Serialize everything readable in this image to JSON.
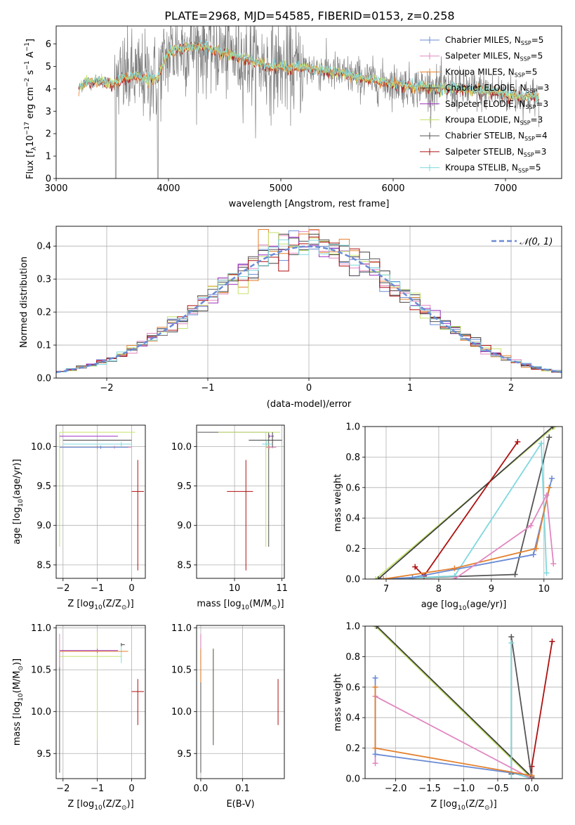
{
  "title": "PLATE=2968, MJD=54585, FIBERID=0153, z=0.258",
  "series_colors": {
    "Chabrier MILES": "#6a8bd5",
    "Salpeter MILES": "#e187c0",
    "Kroupa MILES": "#e3812e",
    "Chabrier ELODIE": "#404040",
    "Salpeter ELODIE": "#9b2fbf",
    "Kroupa ELODIE": "#c4e36c",
    "Chabrier STELIB": "#555555",
    "Salpeter STELIB": "#b01010",
    "Kroupa STELIB": "#7fd8de"
  },
  "chart_data": [
    {
      "id": "spectrum",
      "type": "line",
      "xlabel": "wavelength [Angstrom, rest frame]",
      "ylabel_parts": [
        "Flux [f",
        "λ",
        "10",
        "−17",
        " erg cm",
        "−2",
        " s",
        "−1",
        " A",
        "−1",
        "]"
      ],
      "xlim": [
        3000,
        7500
      ],
      "ylim": [
        0,
        6.8
      ],
      "xticks": [
        3000,
        4000,
        5000,
        6000,
        7000
      ],
      "yticks": [
        0,
        1,
        2,
        3,
        4,
        5,
        6
      ],
      "grid": false,
      "legend_position": "top-right",
      "legend": [
        {
          "base": "Chabrier MILES, N",
          "sub": "SSP",
          "tail": "=5"
        },
        {
          "base": "Salpeter MILES, N",
          "sub": "SSP",
          "tail": "=5"
        },
        {
          "base": "Kroupa MILES, N",
          "sub": "SSP",
          "tail": "=5"
        },
        {
          "base": "Chabrier ELODIE, N",
          "sub": "SSP",
          "tail": "=3"
        },
        {
          "base": "Salpeter ELODIE, N",
          "sub": "SSP",
          "tail": "=3"
        },
        {
          "base": "Kroupa ELODIE, N",
          "sub": "SSP",
          "tail": "=3"
        },
        {
          "base": "Chabrier STELIB, N",
          "sub": "SSP",
          "tail": "=4"
        },
        {
          "base": "Salpeter STELIB, N",
          "sub": "SSP",
          "tail": "=3"
        },
        {
          "base": "Kroupa STELIB, N",
          "sub": "SSP",
          "tail": "=5"
        }
      ],
      "data_range": [
        3200,
        7300
      ],
      "continuum": [
        [
          3200,
          4.0
        ],
        [
          3260,
          4.3
        ],
        [
          3400,
          4.35
        ],
        [
          3500,
          4.2
        ],
        [
          3600,
          4.5
        ],
        [
          3700,
          4.6
        ],
        [
          3800,
          4.5
        ],
        [
          3900,
          4.4
        ],
        [
          3960,
          5.2
        ],
        [
          4000,
          5.6
        ],
        [
          4100,
          5.8
        ],
        [
          4300,
          5.9
        ],
        [
          4500,
          5.6
        ],
        [
          4700,
          5.3
        ],
        [
          4900,
          5.0
        ],
        [
          5100,
          4.9
        ],
        [
          5300,
          4.9
        ],
        [
          5600,
          4.6
        ],
        [
          5900,
          4.3
        ],
        [
          6200,
          4.1
        ],
        [
          6500,
          4.0
        ],
        [
          6800,
          3.9
        ],
        [
          7100,
          3.7
        ],
        [
          7300,
          3.6
        ]
      ]
    },
    {
      "id": "residuals",
      "type": "step",
      "xlabel": "(data-model)/error",
      "ylabel": "Normed distribution",
      "xlim": [
        -2.5,
        2.5
      ],
      "ylim": [
        0,
        0.46
      ],
      "xticks": [
        -2,
        -1,
        0,
        1,
        2
      ],
      "ytick_labels": [
        "0.0",
        "0.1",
        "0.2",
        "0.3",
        "0.4"
      ],
      "yticks": [
        0,
        0.1,
        0.2,
        0.3,
        0.4
      ],
      "grid": true,
      "bin_width": 0.1,
      "gaussian": {
        "label": "𝒩(0, 1)",
        "mean": 0,
        "sigma": 1,
        "color": "#6a8bd5"
      },
      "legend_position": "top-right"
    },
    {
      "id": "age_vs_Z",
      "type": "errorbar",
      "xlabel_parts": [
        "Z [log",
        "10",
        "(Z/Z",
        "⊙",
        ")]"
      ],
      "ylabel_parts": [
        "age  [log",
        "10",
        "(age/yr)]"
      ],
      "xlim": [
        -2.2,
        0.4
      ],
      "ylim": [
        8.33,
        10.27
      ],
      "xticks": [
        -2,
        -1,
        0
      ],
      "yticks": [
        8.5,
        9.0,
        9.5,
        10.0
      ],
      "ytick_labels": [
        "8.5",
        "9.0",
        "9.5",
        "10.0"
      ],
      "grid": true,
      "points": [
        {
          "series": "Salpeter STELIB",
          "x": 0.18,
          "y": 9.43,
          "xerr": [
            0.18,
            0.18
          ],
          "yerr": [
            1.0,
            0.4
          ]
        },
        {
          "series": "Kroupa ELODIE",
          "x": -0.5,
          "y": 10.18,
          "xerr": [
            1.6,
            0.6
          ],
          "yerr": [
            0.0,
            0.0
          ]
        },
        {
          "series": "Kroupa ELODIE",
          "x": -2.1,
          "y": 10.18,
          "xerr": [
            0,
            0
          ],
          "yerr": [
            1.45,
            0
          ]
        },
        {
          "series": "Salpeter ELODIE",
          "x": -1.0,
          "y": 10.13,
          "xerr": [
            1.1,
            0.6
          ],
          "yerr": [
            0,
            0
          ]
        },
        {
          "series": "Chabrier ELODIE",
          "x": -0.3,
          "y": 10.08,
          "xerr": [
            1.7,
            0.3
          ],
          "yerr": [
            0,
            0
          ]
        },
        {
          "series": "Kroupa STELIB",
          "x": -0.3,
          "y": 10.03,
          "xerr": [
            1.7,
            0.3
          ],
          "yerr": [
            0.03,
            0.03
          ]
        },
        {
          "series": "Kroupa MILES",
          "x": -1.0,
          "y": 9.99,
          "xerr": [
            1.1,
            0.9
          ],
          "yerr": [
            0.02,
            0.02
          ]
        },
        {
          "series": "Salpeter MILES",
          "x": -0.5,
          "y": 9.99,
          "xerr": [
            1.5,
            0.5
          ],
          "yerr": [
            0.02,
            0.02
          ]
        },
        {
          "series": "Chabrier MILES",
          "x": -0.9,
          "y": 9.99,
          "xerr": [
            1.2,
            0.8
          ],
          "yerr": [
            0.02,
            0.02
          ]
        }
      ]
    },
    {
      "id": "age_vs_mass",
      "type": "errorbar",
      "xlabel_parts": [
        "mass [log",
        "10",
        "(M/M",
        "⊙",
        ")]"
      ],
      "xlim": [
        9.2,
        11.05
      ],
      "ylim": [
        8.33,
        10.27
      ],
      "xticks": [
        10,
        11
      ],
      "yticks": [
        8.5,
        9.0,
        9.5,
        10.0
      ],
      "ytick_labels": [
        "8.5",
        "9.0",
        "9.5",
        "10.0"
      ],
      "grid": true,
      "points": [
        {
          "series": "Salpeter STELIB",
          "x": 10.24,
          "y": 9.43,
          "xerr": [
            0.4,
            0.15
          ],
          "yerr": [
            1.0,
            0.4
          ]
        },
        {
          "series": "Chabrier STELIB",
          "x": 10.72,
          "y": 10.18,
          "xerr": [
            1.5,
            0
          ],
          "yerr": [
            1.45,
            0
          ]
        },
        {
          "series": "Kroupa ELODIE",
          "x": 10.66,
          "y": 10.18,
          "xerr": [
            1.0,
            0.3
          ],
          "yerr": [
            1.45,
            0
          ]
        },
        {
          "series": "Salpeter ELODIE",
          "x": 10.73,
          "y": 10.13,
          "xerr": [
            0.0,
            0.1
          ],
          "yerr": [
            0.02,
            0.02
          ]
        },
        {
          "series": "Chabrier ELODIE",
          "x": 10.8,
          "y": 10.08,
          "xerr": [
            0.5,
            0.2
          ],
          "yerr": [
            0.1,
            0.1
          ]
        },
        {
          "series": "Kroupa STELIB",
          "x": 10.68,
          "y": 10.03,
          "xerr": [
            0.1,
            0.1
          ],
          "yerr": [
            0.05,
            0.05
          ]
        },
        {
          "series": "Kroupa MILES",
          "x": 10.72,
          "y": 9.99,
          "xerr": [
            0.05,
            0.05
          ],
          "yerr": [
            0.02,
            0.02
          ]
        },
        {
          "series": "Salpeter MILES",
          "x": 10.73,
          "y": 9.99,
          "xerr": [
            0.05,
            0.15
          ],
          "yerr": [
            0.02,
            0.02
          ]
        }
      ]
    },
    {
      "id": "weight_vs_age",
      "type": "line",
      "xlabel_parts": [
        "age  [log",
        "10",
        "(age/yr)]"
      ],
      "ylabel": "mass weight",
      "xlim": [
        6.6,
        10.35
      ],
      "ylim": [
        0,
        1
      ],
      "xticks": [
        7,
        8,
        9,
        10
      ],
      "yticks": [
        0,
        0.2,
        0.4,
        0.6,
        0.8,
        1.0
      ],
      "ytick_labels": [
        "0.0",
        "0.2",
        "0.4",
        "0.6",
        "0.8",
        "1.0"
      ],
      "grid": true,
      "series": [
        {
          "name": "Kroupa ELODIE",
          "points": [
            [
              6.8,
              0.0
            ],
            [
              10.2,
              1.0
            ]
          ]
        },
        {
          "name": "Chabrier ELODIE",
          "points": [
            [
              6.85,
              0.0
            ],
            [
              10.17,
              1.0
            ]
          ]
        },
        {
          "name": "Salpeter STELIB",
          "points": [
            [
              7.55,
              0.08
            ],
            [
              7.72,
              0.02
            ],
            [
              9.5,
              0.9
            ]
          ]
        },
        {
          "name": "Chabrier STELIB",
          "points": [
            [
              6.9,
              0.0
            ],
            [
              9.45,
              0.03
            ],
            [
              10.1,
              0.93
            ]
          ]
        },
        {
          "name": "Kroupa STELIB",
          "points": [
            [
              6.95,
              0.0
            ],
            [
              8.3,
              0.02
            ],
            [
              9.95,
              0.89
            ],
            [
              10.05,
              0.04
            ]
          ]
        },
        {
          "name": "Chabrier MILES",
          "points": [
            [
              6.95,
              0.0
            ],
            [
              7.5,
              0.01
            ],
            [
              9.8,
              0.16
            ],
            [
              10.15,
              0.66
            ]
          ]
        },
        {
          "name": "Kroupa MILES",
          "points": [
            [
              6.95,
              0.0
            ],
            [
              8.3,
              0.07
            ],
            [
              9.85,
              0.2
            ],
            [
              10.1,
              0.6
            ]
          ]
        },
        {
          "name": "Salpeter MILES",
          "points": [
            [
              8.3,
              0.0
            ],
            [
              9.75,
              0.35
            ],
            [
              10.05,
              0.55
            ],
            [
              10.18,
              0.1
            ]
          ]
        }
      ]
    },
    {
      "id": "mass_vs_Z",
      "type": "errorbar",
      "xlabel_parts": [
        "Z [log",
        "10",
        "(Z/Z",
        "⊙",
        ")]"
      ],
      "ylabel_parts": [
        "mass [log",
        "10",
        "(M/M",
        "⊙",
        ")]"
      ],
      "xlim": [
        -2.2,
        0.4
      ],
      "ylim": [
        9.2,
        11.03
      ],
      "xticks": [
        -2,
        -1,
        0
      ],
      "yticks": [
        9.5,
        10.0,
        10.5,
        11.0
      ],
      "ytick_labels": [
        "9.5",
        "10.0",
        "10.5",
        "11.0"
      ],
      "grid": true,
      "points": [
        {
          "series": "Salpeter STELIB",
          "x": 0.18,
          "y": 10.24,
          "xerr": [
            0.18,
            0.18
          ],
          "yerr": [
            0.4,
            0.15
          ]
        },
        {
          "series": "Chabrier STELIB",
          "x": -2.1,
          "y": 10.72,
          "xerr": [
            0,
            0
          ],
          "yerr": [
            1.45,
            0
          ]
        },
        {
          "series": "Kroupa ELODIE",
          "x": -1.0,
          "y": 10.66,
          "xerr": [
            1.1,
            0.7
          ],
          "yerr": [
            1.0,
            0.3
          ]
        },
        {
          "series": "Salpeter ELODIE",
          "x": -1.0,
          "y": 10.73,
          "xerr": [
            1.1,
            0.6
          ],
          "yerr": [
            0.02,
            0.02
          ]
        },
        {
          "series": "Chabrier ELODIE",
          "x": -0.3,
          "y": 10.8,
          "xerr": [
            0,
            0.1
          ],
          "yerr": [
            0.02,
            0.02
          ]
        },
        {
          "series": "Kroupa STELIB",
          "x": -0.3,
          "y": 10.68,
          "xerr": [
            0,
            0
          ],
          "yerr": [
            0.1,
            0.1
          ]
        },
        {
          "series": "Kroupa MILES",
          "x": -1.0,
          "y": 10.72,
          "xerr": [
            1.1,
            0.9
          ],
          "yerr": [
            0.02,
            0.02
          ]
        },
        {
          "series": "Salpeter MILES",
          "x": -2.1,
          "y": 10.73,
          "xerr": [
            0,
            0
          ],
          "yerr": [
            0.2,
            0.2
          ]
        }
      ]
    },
    {
      "id": "mass_vs_ebv",
      "type": "errorbar",
      "xlabel": "E(B-V)",
      "xlim": [
        -0.01,
        0.2
      ],
      "ylim": [
        9.2,
        11.03
      ],
      "xticks": [
        0.0,
        0.1
      ],
      "xtick_labels": [
        "0.0",
        "0.1"
      ],
      "yticks": [
        9.5,
        10.0,
        10.5,
        11.0
      ],
      "ytick_labels": [
        "9.5",
        "10.0",
        "10.5",
        "11.0"
      ],
      "grid": true,
      "points": [
        {
          "series": "Salpeter STELIB",
          "x": 0.185,
          "y": 10.24,
          "xerr": [
            0,
            0
          ],
          "yerr": [
            0.4,
            0.15
          ]
        },
        {
          "series": "Chabrier STELIB",
          "x": 0.0,
          "y": 10.72,
          "xerr": [
            0,
            0
          ],
          "yerr": [
            1.45,
            0.2
          ]
        },
        {
          "series": "Salpeter MILES",
          "x": 0.0,
          "y": 10.73,
          "xerr": [
            0,
            0
          ],
          "yerr": [
            0.2,
            0.2
          ]
        },
        {
          "series": "Kroupa MILES",
          "x": 0.0,
          "y": 10.55,
          "xerr": [
            0,
            0
          ],
          "yerr": [
            0.2,
            0.2
          ]
        },
        {
          "series": "Kroupa ELODIE",
          "x": 0.03,
          "y": 10.66,
          "xerr": [
            0,
            0
          ],
          "yerr": [
            1.0,
            0.1
          ]
        },
        {
          "series": "Chabrier STELIB",
          "x": 0.03,
          "y": 10.2,
          "xerr": [
            0,
            0
          ],
          "yerr": [
            0.6,
            0.55
          ]
        }
      ]
    },
    {
      "id": "weight_vs_Z",
      "type": "line",
      "xlabel_parts": [
        "Z [log",
        "10",
        "(Z/Z",
        "⊙",
        ")]"
      ],
      "ylabel": "mass weight",
      "xlim": [
        -2.45,
        0.45
      ],
      "ylim": [
        0,
        1
      ],
      "xticks": [
        -2.0,
        -1.5,
        -1.0,
        -0.5,
        0.0
      ],
      "xtick_labels": [
        "−2.0",
        "−1.5",
        "−1.0",
        "−0.5",
        "0.0"
      ],
      "yticks": [
        0,
        0.2,
        0.4,
        0.6,
        0.8,
        1.0
      ],
      "ytick_labels": [
        "0.0",
        "0.2",
        "0.4",
        "0.6",
        "0.8",
        "1.0"
      ],
      "grid": true,
      "series": [
        {
          "name": "Kroupa ELODIE",
          "points": [
            [
              -2.3,
              1.0
            ],
            [
              0.0,
              0.0
            ]
          ]
        },
        {
          "name": "Chabrier ELODIE",
          "points": [
            [
              -2.28,
              1.0
            ],
            [
              0.0,
              0.01
            ]
          ]
        },
        {
          "name": "Salpeter STELIB",
          "points": [
            [
              0.0,
              0.0
            ],
            [
              0.0,
              0.08
            ],
            [
              0.3,
              0.9
            ]
          ]
        },
        {
          "name": "Chabrier STELIB",
          "points": [
            [
              -0.3,
              0.03
            ],
            [
              -0.3,
              0.93
            ],
            [
              0.0,
              0.0
            ]
          ]
        },
        {
          "name": "Kroupa STELIB",
          "points": [
            [
              -0.3,
              0.0
            ],
            [
              -0.3,
              0.89
            ],
            [
              -0.3,
              0.04
            ],
            [
              0.0,
              0.0
            ]
          ]
        },
        {
          "name": "Salpeter MILES",
          "points": [
            [
              -2.3,
              0.1
            ],
            [
              -2.3,
              0.54
            ],
            [
              0.0,
              0.0
            ]
          ]
        },
        {
          "name": "Chabrier MILES",
          "points": [
            [
              -2.3,
              0.66
            ],
            [
              -2.3,
              0.16
            ],
            [
              0.0,
              0.02
            ]
          ]
        },
        {
          "name": "Kroupa MILES",
          "points": [
            [
              -2.3,
              0.6
            ],
            [
              -2.3,
              0.2
            ],
            [
              0.0,
              0.02
            ]
          ]
        }
      ]
    }
  ]
}
